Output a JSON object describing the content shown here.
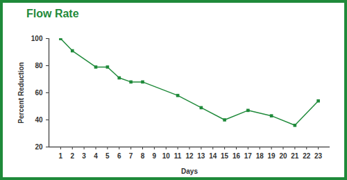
{
  "chart_data": {
    "type": "line",
    "title": "Flow Rate",
    "x_label": "Days",
    "y_label": "Percent Reduction",
    "x": [
      1,
      2,
      4,
      5,
      6,
      7,
      8,
      11,
      13,
      15,
      17,
      19,
      21,
      23
    ],
    "values": [
      100,
      91,
      79,
      79,
      71,
      68,
      68,
      58,
      49,
      40,
      47,
      43,
      36,
      54
    ],
    "color": "#1f8a3a",
    "marker": "square",
    "line_style": "solid",
    "grid": false,
    "xlim": [
      0,
      24
    ],
    "xticks": [
      1,
      2,
      3,
      4,
      5,
      6,
      7,
      8,
      9,
      10,
      11,
      12,
      13,
      14,
      15,
      16,
      17,
      18,
      19,
      20,
      21,
      22,
      23
    ],
    "ylim": [
      20,
      100
    ],
    "yticks": [
      20,
      40,
      60,
      80,
      100
    ]
  }
}
